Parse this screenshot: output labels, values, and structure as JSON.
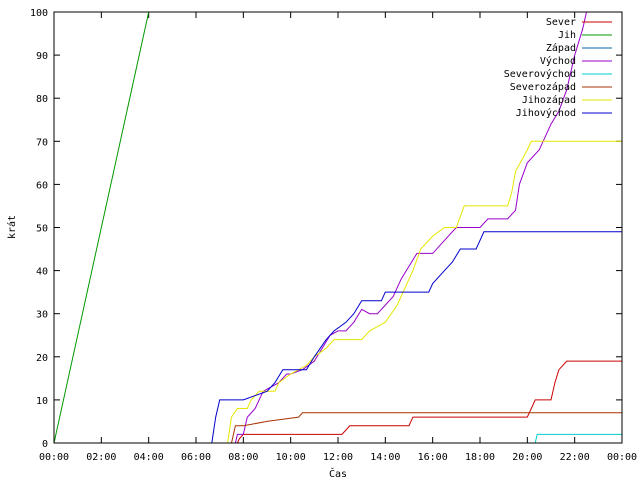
{
  "chart_data": {
    "type": "line",
    "xlabel": "Čas",
    "ylabel": "krát",
    "xlim": [
      "00:00",
      "24:00"
    ],
    "ylim": [
      0,
      100
    ],
    "x_ticks": [
      "00:00",
      "02:00",
      "04:00",
      "06:00",
      "08:00",
      "10:00",
      "12:00",
      "14:00",
      "16:00",
      "18:00",
      "20:00",
      "22:00",
      "00:00"
    ],
    "y_ticks": [
      0,
      10,
      20,
      30,
      40,
      50,
      60,
      70,
      80,
      90,
      100
    ],
    "grid": false,
    "legend_position": "top-right",
    "series": [
      {
        "name": "Sever",
        "color": "#cc0000",
        "points": [
          [
            "07:45",
            0
          ],
          [
            "07:50",
            1
          ],
          [
            "08:00",
            2
          ],
          [
            "12:10",
            2
          ],
          [
            "12:20",
            3
          ],
          [
            "12:30",
            4
          ],
          [
            "15:00",
            4
          ],
          [
            "15:10",
            6
          ],
          [
            "20:00",
            6
          ],
          [
            "20:10",
            8
          ],
          [
            "20:20",
            10
          ],
          [
            "21:00",
            10
          ],
          [
            "21:10",
            14
          ],
          [
            "21:20",
            17
          ],
          [
            "21:40",
            19
          ],
          [
            "24:00",
            19
          ]
        ]
      },
      {
        "name": "Jih",
        "color": "#009900",
        "points": [
          [
            "00:00",
            0
          ],
          [
            "04:00",
            100
          ]
        ]
      },
      {
        "name": "Západ",
        "color": "#0066aa",
        "points": []
      },
      {
        "name": "Východ",
        "color": "#9900cc",
        "points": [
          [
            "07:40",
            0
          ],
          [
            "07:45",
            2
          ],
          [
            "08:00",
            2
          ],
          [
            "08:10",
            6
          ],
          [
            "08:30",
            8
          ],
          [
            "08:50",
            12
          ],
          [
            "09:30",
            14
          ],
          [
            "09:50",
            16
          ],
          [
            "10:00",
            16
          ],
          [
            "10:30",
            17
          ],
          [
            "11:00",
            19
          ],
          [
            "11:20",
            22
          ],
          [
            "11:40",
            25
          ],
          [
            "12:00",
            26
          ],
          [
            "12:20",
            26
          ],
          [
            "12:40",
            28
          ],
          [
            "13:00",
            31
          ],
          [
            "13:20",
            30
          ],
          [
            "13:40",
            30
          ],
          [
            "14:00",
            32
          ],
          [
            "14:20",
            34
          ],
          [
            "14:40",
            38
          ],
          [
            "15:00",
            41
          ],
          [
            "15:20",
            44
          ],
          [
            "16:00",
            44
          ],
          [
            "16:20",
            46
          ],
          [
            "16:40",
            48
          ],
          [
            "17:00",
            50
          ],
          [
            "18:00",
            50
          ],
          [
            "18:20",
            52
          ],
          [
            "19:10",
            52
          ],
          [
            "19:30",
            54
          ],
          [
            "19:40",
            60
          ],
          [
            "20:00",
            65
          ],
          [
            "20:30",
            68
          ],
          [
            "21:00",
            74
          ],
          [
            "21:20",
            77
          ],
          [
            "21:40",
            82
          ],
          [
            "22:00",
            90
          ],
          [
            "22:20",
            96
          ],
          [
            "22:30",
            100
          ]
        ]
      },
      {
        "name": "Severovýchod",
        "color": "#00cccc",
        "points": [
          [
            "20:20",
            0
          ],
          [
            "20:25",
            2
          ],
          [
            "24:00",
            2
          ]
        ]
      },
      {
        "name": "Severozápad",
        "color": "#aa3300",
        "points": [
          [
            "07:30",
            0
          ],
          [
            "07:40",
            4
          ],
          [
            "08:00",
            4
          ],
          [
            "09:00",
            5
          ],
          [
            "10:20",
            6
          ],
          [
            "10:30",
            7
          ],
          [
            "24:00",
            7
          ]
        ]
      },
      {
        "name": "Jihozápad",
        "color": "#e6e600",
        "points": [
          [
            "07:20",
            0
          ],
          [
            "07:30",
            6
          ],
          [
            "07:45",
            8
          ],
          [
            "08:10",
            8
          ],
          [
            "08:20",
            10
          ],
          [
            "08:40",
            12
          ],
          [
            "09:20",
            12
          ],
          [
            "09:30",
            14
          ],
          [
            "10:00",
            16
          ],
          [
            "10:40",
            18
          ],
          [
            "11:00",
            20
          ],
          [
            "11:30",
            22
          ],
          [
            "11:50",
            24
          ],
          [
            "13:00",
            24
          ],
          [
            "13:20",
            26
          ],
          [
            "14:00",
            28
          ],
          [
            "14:30",
            32
          ],
          [
            "14:50",
            36
          ],
          [
            "15:10",
            40
          ],
          [
            "15:30",
            45
          ],
          [
            "16:00",
            48
          ],
          [
            "16:30",
            50
          ],
          [
            "17:00",
            50
          ],
          [
            "17:20",
            55
          ],
          [
            "19:10",
            55
          ],
          [
            "19:20",
            58
          ],
          [
            "19:30",
            63
          ],
          [
            "20:00",
            68
          ],
          [
            "20:10",
            70
          ],
          [
            "24:00",
            70
          ]
        ]
      },
      {
        "name": "Jihovýchod",
        "color": "#0000cc",
        "points": [
          [
            "06:40",
            0
          ],
          [
            "06:50",
            6
          ],
          [
            "07:00",
            10
          ],
          [
            "08:00",
            10
          ],
          [
            "09:00",
            12
          ],
          [
            "09:20",
            14
          ],
          [
            "09:40",
            17
          ],
          [
            "10:40",
            17
          ],
          [
            "11:00",
            20
          ],
          [
            "11:30",
            24
          ],
          [
            "11:50",
            26
          ],
          [
            "12:20",
            28
          ],
          [
            "12:40",
            30
          ],
          [
            "13:00",
            33
          ],
          [
            "13:50",
            33
          ],
          [
            "14:00",
            35
          ],
          [
            "15:50",
            35
          ],
          [
            "16:00",
            37
          ],
          [
            "16:30",
            40
          ],
          [
            "16:50",
            42
          ],
          [
            "17:10",
            45
          ],
          [
            "17:50",
            45
          ],
          [
            "18:00",
            47
          ],
          [
            "18:10",
            49
          ],
          [
            "24:00",
            49
          ]
        ]
      }
    ]
  }
}
